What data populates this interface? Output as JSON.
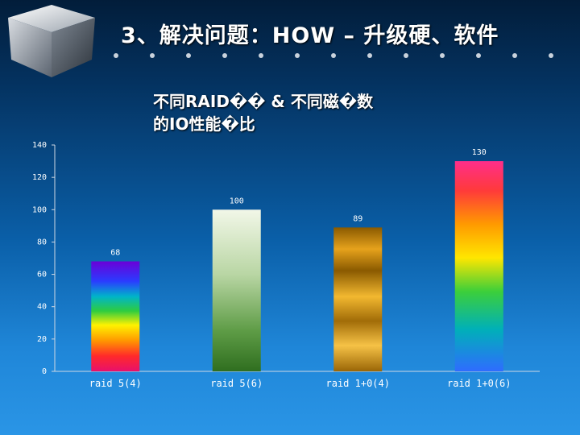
{
  "slide": {
    "title": "3、解决问题：HOW – 升级硬、软件"
  },
  "chart_data": {
    "type": "bar",
    "title_lines": [
      "不同RAID�� & 不同磁�数",
      "的IO性能�比"
    ],
    "categories": [
      "raid 5(4)",
      "raid 5(6)",
      "raid 1+0(4)",
      "raid 1+0(6)"
    ],
    "values": [
      68,
      100,
      89,
      130
    ],
    "ylim": [
      0,
      140
    ],
    "yticks": [
      0,
      20,
      40,
      60,
      80,
      100,
      120,
      140
    ],
    "grid": false,
    "legend": "none",
    "bar_fills": [
      "rainbow",
      "green-gradient",
      "amber-gradient",
      "rainbow-reverse"
    ]
  }
}
